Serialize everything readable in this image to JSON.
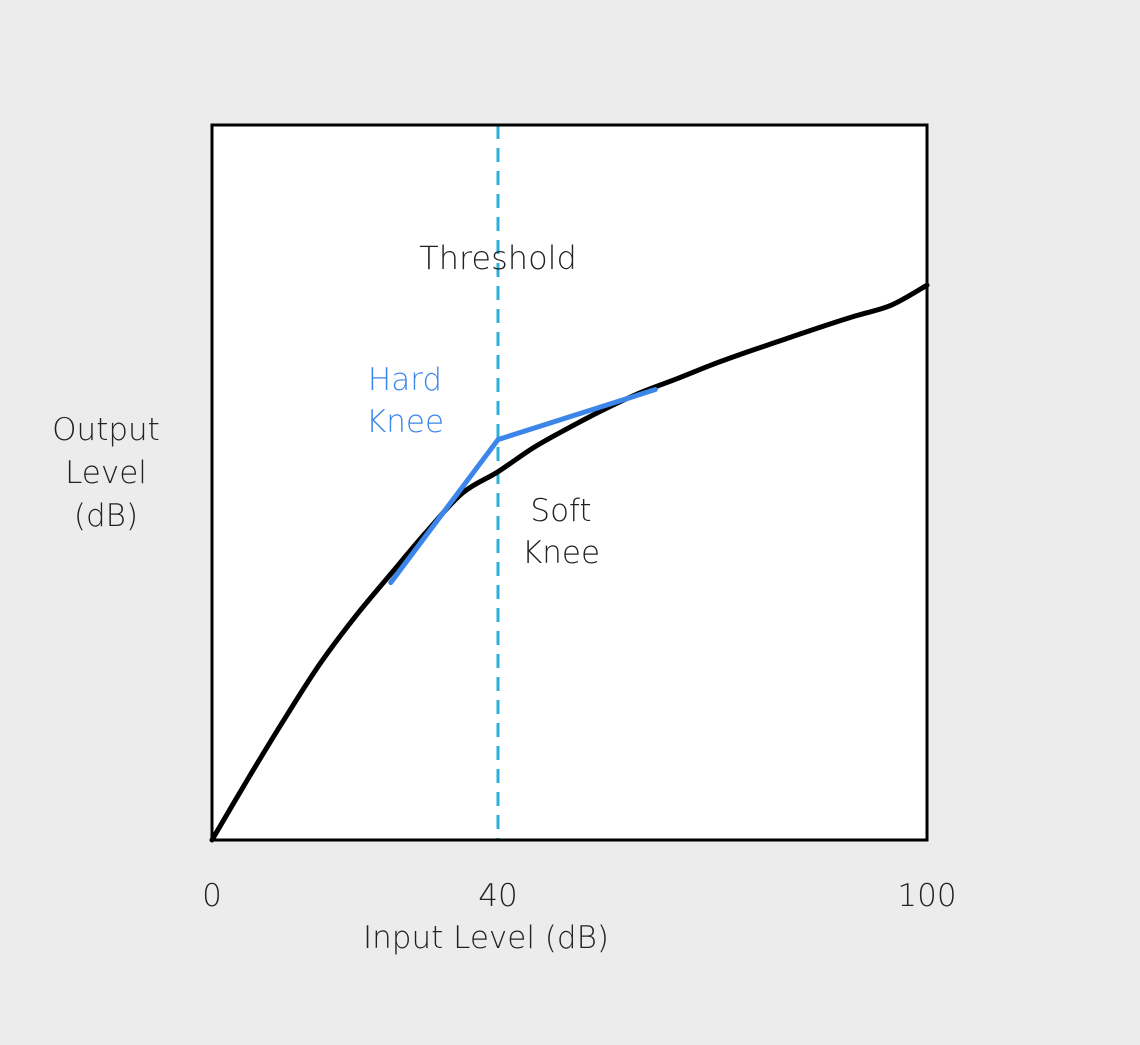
{
  "chart_data": {
    "type": "line",
    "xlabel": "Input Level (dB)",
    "ylabel_lines": [
      "Output",
      "Level",
      "(dB)"
    ],
    "x_ticks": [
      {
        "value": 0,
        "label": "0"
      },
      {
        "value": 40,
        "label": "40"
      },
      {
        "value": 100,
        "label": "100"
      }
    ],
    "xlim": [
      0,
      100
    ],
    "ylim": [
      0,
      100
    ],
    "grid": false,
    "threshold": {
      "x": 40,
      "label": "Threshold",
      "color": "#2bb0dc",
      "style": "dashed"
    },
    "series": [
      {
        "name": "Hard Knee",
        "name_lines": [
          "Hard",
          "Knee"
        ],
        "color": "#3b86e8",
        "x": [
          25,
          40,
          62
        ],
        "y": [
          36,
          56,
          63
        ]
      },
      {
        "name": "Soft Knee",
        "name_lines": [
          "Soft",
          "Knee"
        ],
        "color": "#000000",
        "x": [
          0,
          5,
          10,
          15,
          20,
          25,
          30,
          35,
          40,
          45,
          50,
          55,
          60,
          65,
          70,
          75,
          80,
          85,
          90,
          95,
          100
        ],
        "y": [
          0,
          8.5,
          16.7,
          24.5,
          31.2,
          37.2,
          43.1,
          48.5,
          51.5,
          54.9,
          57.7,
          60.3,
          62.6,
          64.5,
          66.5,
          68.3,
          70.0,
          71.7,
          73.3,
          74.8,
          77.6
        ]
      }
    ]
  }
}
